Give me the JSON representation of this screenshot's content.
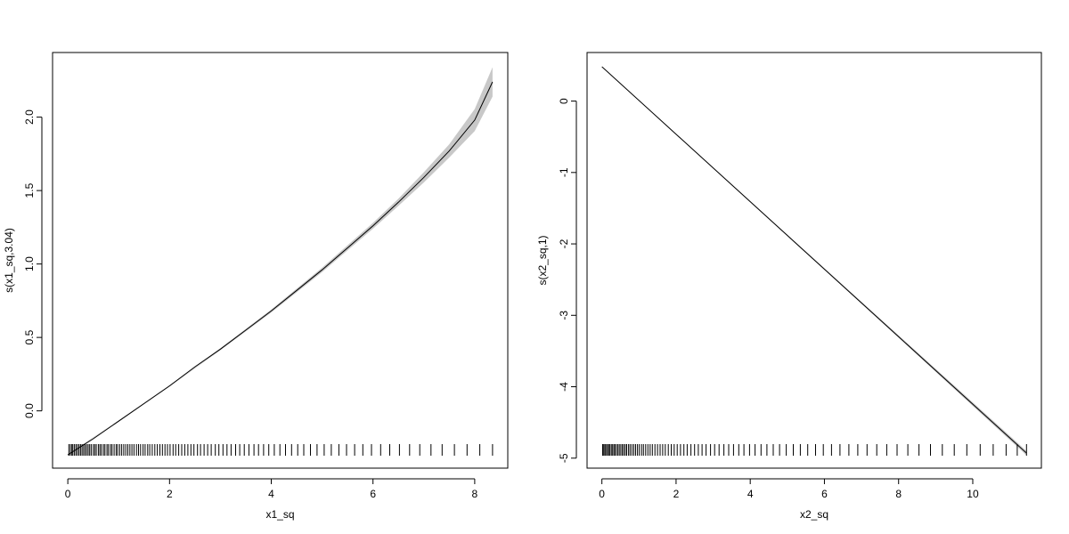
{
  "chart_data": [
    {
      "type": "line",
      "xlabel": "x1_sq",
      "ylabel": "s(x1_sq,3.04)",
      "xlim": [
        -0.3,
        8.65
      ],
      "ylim": [
        -0.39,
        2.44
      ],
      "x_ticks": [
        0,
        2,
        4,
        6,
        8
      ],
      "y_ticks": [
        0.0,
        0.5,
        1.0,
        1.5,
        2.0
      ],
      "x_tick_labels": [
        "0",
        "2",
        "4",
        "6",
        "8"
      ],
      "y_tick_labels": [
        "0.0",
        "0.5",
        "1.0",
        "1.5",
        "2.0"
      ],
      "grid": false,
      "series": [
        {
          "kind": "fit",
          "x": [
            0,
            0.5,
            1,
            1.5,
            2,
            2.5,
            3,
            3.5,
            4,
            4.5,
            5,
            5.5,
            6,
            6.5,
            7,
            7.5,
            8,
            8.35
          ],
          "y": [
            -0.3,
            -0.19,
            -0.07,
            0.05,
            0.17,
            0.3,
            0.42,
            0.55,
            0.68,
            0.82,
            0.96,
            1.11,
            1.26,
            1.42,
            1.59,
            1.77,
            1.98,
            2.24
          ]
        },
        {
          "kind": "confidence_band",
          "x": [
            0,
            1,
            2,
            3,
            4,
            5,
            6,
            6.5,
            7,
            7.5,
            8,
            8.35
          ],
          "lower": [
            -0.305,
            -0.075,
            0.165,
            0.413,
            0.67,
            0.945,
            1.24,
            1.395,
            1.555,
            1.725,
            1.905,
            2.14
          ],
          "upper": [
            -0.295,
            -0.065,
            0.175,
            0.427,
            0.69,
            0.975,
            1.28,
            1.445,
            1.625,
            1.815,
            2.055,
            2.34
          ]
        }
      ],
      "rug": [
        0.02,
        0.05,
        0.08,
        0.1,
        0.13,
        0.16,
        0.19,
        0.22,
        0.25,
        0.28,
        0.31,
        0.34,
        0.37,
        0.4,
        0.43,
        0.46,
        0.5,
        0.53,
        0.56,
        0.6,
        0.63,
        0.66,
        0.7,
        0.73,
        0.77,
        0.8,
        0.84,
        0.87,
        0.91,
        0.95,
        0.98,
        1.02,
        1.06,
        1.1,
        1.14,
        1.18,
        1.22,
        1.26,
        1.3,
        1.35,
        1.39,
        1.43,
        1.48,
        1.52,
        1.57,
        1.61,
        1.66,
        1.71,
        1.76,
        1.81,
        1.86,
        1.91,
        1.96,
        2.01,
        2.07,
        2.12,
        2.18,
        2.24,
        2.3,
        2.36,
        2.42,
        2.48,
        2.55,
        2.61,
        2.68,
        2.75,
        2.82,
        2.9,
        2.97,
        3.05,
        3.13,
        3.21,
        3.3,
        3.38,
        3.47,
        3.56,
        3.66,
        3.75,
        3.85,
        3.95,
        4.06,
        4.17,
        4.28,
        4.4,
        4.52,
        4.64,
        4.77,
        4.9,
        5.04,
        5.18,
        5.33,
        5.48,
        5.64,
        5.8,
        5.97,
        6.15,
        6.33,
        6.52,
        6.72,
        6.92,
        7.14,
        7.36,
        7.6,
        7.85,
        8.1,
        8.35
      ]
    },
    {
      "type": "line",
      "xlabel": "x2_sq",
      "ylabel": "s(x2_sq,1)",
      "xlim": [
        -0.4,
        11.85
      ],
      "ylim": [
        -5.14,
        0.68
      ],
      "x_ticks": [
        0,
        2,
        4,
        6,
        8,
        10
      ],
      "y_ticks": [
        0,
        -1,
        -2,
        -3,
        -4,
        -5
      ],
      "x_tick_labels": [
        "0",
        "2",
        "4",
        "6",
        "8",
        "10"
      ],
      "y_tick_labels": [
        "0",
        "-1",
        "-2",
        "-3",
        "-4",
        "-5"
      ],
      "grid": false,
      "series": [
        {
          "kind": "fit",
          "x": [
            0,
            11.45
          ],
          "y": [
            0.48,
            -4.93
          ]
        },
        {
          "kind": "confidence_band",
          "x": [
            0,
            6,
            11.45
          ],
          "lower": [
            0.475,
            -2.36,
            -4.96
          ],
          "upper": [
            0.485,
            -2.34,
            -4.9
          ]
        }
      ],
      "rug": [
        0.02,
        0.05,
        0.08,
        0.11,
        0.15,
        0.18,
        0.21,
        0.25,
        0.28,
        0.32,
        0.35,
        0.39,
        0.43,
        0.47,
        0.51,
        0.55,
        0.59,
        0.63,
        0.67,
        0.72,
        0.76,
        0.81,
        0.86,
        0.91,
        0.96,
        1.01,
        1.07,
        1.12,
        1.18,
        1.24,
        1.3,
        1.36,
        1.43,
        1.5,
        1.57,
        1.64,
        1.71,
        1.79,
        1.87,
        1.95,
        2.03,
        2.12,
        2.21,
        2.3,
        2.4,
        2.5,
        2.6,
        2.7,
        2.81,
        2.93,
        3.04,
        3.16,
        3.29,
        3.42,
        3.55,
        3.69,
        3.83,
        3.98,
        4.13,
        4.29,
        4.45,
        4.62,
        4.79,
        4.97,
        5.16,
        5.35,
        5.55,
        5.76,
        5.97,
        6.19,
        6.42,
        6.66,
        6.9,
        7.15,
        7.41,
        7.68,
        7.96,
        8.25,
        8.55,
        8.86,
        9.18,
        9.5,
        9.84,
        10.2,
        10.55,
        10.9,
        11.2,
        11.45
      ]
    }
  ]
}
